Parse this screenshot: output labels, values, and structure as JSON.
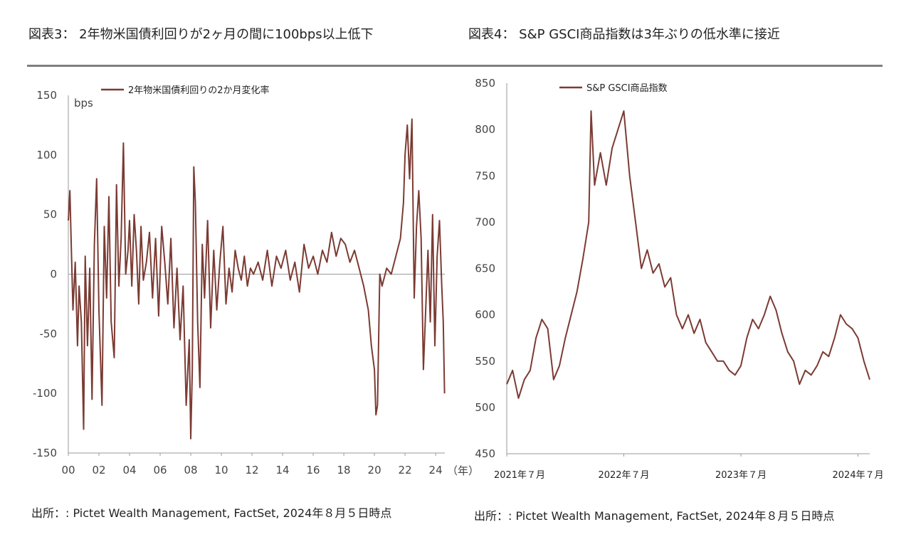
{
  "figure3": {
    "heading": "図表3： 2年物米国債利回りが2ヶ月の間に100bps以上低下",
    "source": "出所：: Pictet Wealth Management, FactSet, 2024年８月５日時点"
  },
  "figure4": {
    "heading": "図表4： S&P GSCI商品指数は3年ぶりの低水準に接近",
    "source": "出所：: Pictet Wealth Management, FactSet, 2024年８月５日時点"
  },
  "chart_data": [
    {
      "type": "line",
      "title": "",
      "ylabel": "bps",
      "xlabel": "（年）",
      "ylim": [
        -150,
        150
      ],
      "xlim": [
        2000,
        2024.6
      ],
      "yticks": [
        150,
        100,
        50,
        0,
        -50,
        -100,
        -150
      ],
      "xticks": [
        "00",
        "02",
        "04",
        "06",
        "08",
        "10",
        "12",
        "14",
        "16",
        "18",
        "20",
        "22",
        "24"
      ],
      "legend_position": "top",
      "grid": false,
      "series": [
        {
          "name": "2年物米国債利回りの2か月変化率",
          "color": "#7b3b33",
          "x": [
            2000.0,
            2000.1,
            2000.2,
            2000.3,
            2000.45,
            2000.6,
            2000.7,
            2000.85,
            2001.0,
            2001.1,
            2001.25,
            2001.4,
            2001.55,
            2001.7,
            2001.85,
            2002.0,
            2002.2,
            2002.35,
            2002.5,
            2002.65,
            2002.8,
            2003.0,
            2003.15,
            2003.3,
            2003.45,
            2003.6,
            2003.75,
            2003.9,
            2004.0,
            2004.15,
            2004.3,
            2004.45,
            2004.6,
            2004.75,
            2004.9,
            2005.1,
            2005.3,
            2005.5,
            2005.7,
            2005.9,
            2006.1,
            2006.3,
            2006.5,
            2006.7,
            2006.9,
            2007.1,
            2007.3,
            2007.5,
            2007.7,
            2007.9,
            2008.0,
            2008.1,
            2008.2,
            2008.3,
            2008.45,
            2008.6,
            2008.75,
            2008.9,
            2009.1,
            2009.3,
            2009.5,
            2009.7,
            2009.9,
            2010.1,
            2010.3,
            2010.5,
            2010.7,
            2010.9,
            2011.1,
            2011.3,
            2011.5,
            2011.7,
            2011.9,
            2012.1,
            2012.4,
            2012.7,
            2013.0,
            2013.3,
            2013.6,
            2013.9,
            2014.2,
            2014.5,
            2014.8,
            2015.1,
            2015.4,
            2015.7,
            2016.0,
            2016.3,
            2016.6,
            2016.9,
            2017.2,
            2017.5,
            2017.8,
            2018.1,
            2018.4,
            2018.7,
            2019.0,
            2019.3,
            2019.6,
            2019.8,
            2020.0,
            2020.1,
            2020.2,
            2020.35,
            2020.5,
            2020.8,
            2021.1,
            2021.4,
            2021.7,
            2021.9,
            2022.0,
            2022.15,
            2022.3,
            2022.45,
            2022.6,
            2022.75,
            2022.9,
            2023.05,
            2023.2,
            2023.35,
            2023.5,
            2023.65,
            2023.8,
            2023.95,
            2024.1,
            2024.25,
            2024.4,
            2024.5,
            2024.58
          ],
          "values": [
            45,
            70,
            20,
            -30,
            10,
            -60,
            -10,
            -40,
            -130,
            15,
            -60,
            5,
            -105,
            25,
            80,
            -30,
            -110,
            40,
            -20,
            65,
            -40,
            -70,
            75,
            -10,
            30,
            110,
            0,
            20,
            45,
            -10,
            50,
            20,
            -25,
            40,
            -5,
            10,
            35,
            -20,
            30,
            -35,
            40,
            10,
            -25,
            30,
            -45,
            5,
            -55,
            -10,
            -110,
            -55,
            -138,
            -80,
            90,
            60,
            -40,
            -95,
            25,
            -20,
            45,
            -45,
            20,
            -30,
            10,
            40,
            -25,
            5,
            -15,
            20,
            5,
            -5,
            15,
            -10,
            5,
            0,
            10,
            -5,
            20,
            -10,
            15,
            5,
            20,
            -5,
            10,
            -15,
            25,
            5,
            15,
            0,
            20,
            10,
            35,
            15,
            30,
            25,
            10,
            20,
            5,
            -10,
            -30,
            -60,
            -80,
            -118,
            -110,
            0,
            -10,
            5,
            0,
            15,
            30,
            60,
            100,
            125,
            80,
            130,
            -20,
            40,
            70,
            30,
            -80,
            -30,
            20,
            -40,
            50,
            -60,
            15,
            45,
            -10,
            -40,
            -100
          ]
        }
      ]
    },
    {
      "type": "line",
      "title": "",
      "ylabel": "",
      "xlabel": "",
      "ylim": [
        450,
        850
      ],
      "xlim": [
        2021.5,
        2024.6
      ],
      "yticks": [
        850,
        800,
        750,
        700,
        650,
        600,
        550,
        500,
        450
      ],
      "xticks": [
        "2021年７月",
        "2022年７月",
        "2023年７月",
        "2024年７月"
      ],
      "legend_position": "top",
      "grid": false,
      "series": [
        {
          "name": "S&P GSCI商品指数",
          "color": "#7b3b33",
          "x": [
            2021.5,
            2021.55,
            2021.6,
            2021.65,
            2021.7,
            2021.75,
            2021.8,
            2021.85,
            2021.9,
            2021.95,
            2022.0,
            2022.05,
            2022.1,
            2022.15,
            2022.2,
            2022.22,
            2022.25,
            2022.3,
            2022.35,
            2022.4,
            2022.45,
            2022.5,
            2022.55,
            2022.6,
            2022.65,
            2022.7,
            2022.75,
            2022.8,
            2022.85,
            2022.9,
            2022.95,
            2023.0,
            2023.05,
            2023.1,
            2023.15,
            2023.2,
            2023.25,
            2023.3,
            2023.35,
            2023.4,
            2023.45,
            2023.5,
            2023.55,
            2023.6,
            2023.65,
            2023.7,
            2023.75,
            2023.8,
            2023.85,
            2023.9,
            2023.95,
            2024.0,
            2024.05,
            2024.1,
            2024.15,
            2024.2,
            2024.25,
            2024.3,
            2024.35,
            2024.4,
            2024.45,
            2024.5,
            2024.55,
            2024.6
          ],
          "values": [
            525,
            540,
            510,
            530,
            540,
            575,
            595,
            585,
            530,
            545,
            575,
            600,
            625,
            660,
            700,
            820,
            740,
            775,
            740,
            780,
            800,
            820,
            750,
            700,
            650,
            670,
            645,
            655,
            630,
            640,
            600,
            585,
            600,
            580,
            595,
            570,
            560,
            550,
            550,
            540,
            535,
            545,
            575,
            595,
            585,
            600,
            620,
            605,
            580,
            560,
            550,
            525,
            540,
            535,
            545,
            560,
            555,
            575,
            600,
            590,
            585,
            575,
            550,
            530
          ]
        }
      ]
    }
  ]
}
